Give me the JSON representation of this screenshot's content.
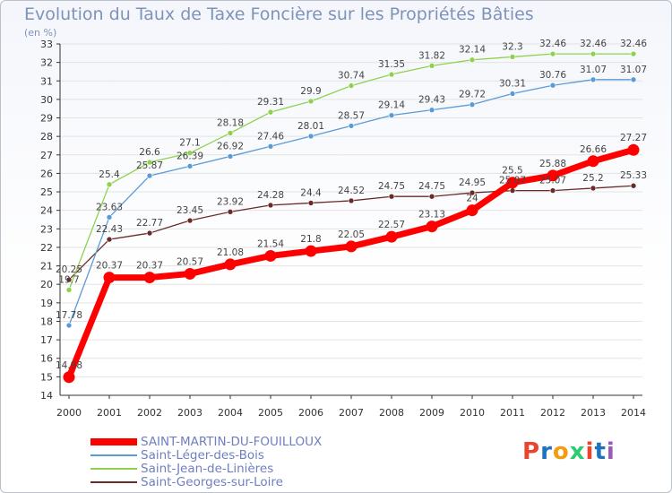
{
  "chart_data": {
    "type": "line",
    "title": "Evolution du Taux de Taxe Foncière sur les Propriétés Bâties",
    "ylabel": "(en %)",
    "xlabel": "",
    "ylim": [
      14,
      33
    ],
    "categories": [
      "2000",
      "2001",
      "2002",
      "2003",
      "2004",
      "2005",
      "2006",
      "2007",
      "2008",
      "2009",
      "2010",
      "2011",
      "2012",
      "2013",
      "2014"
    ],
    "series": [
      {
        "name": "SAINT-MARTIN-DU-FOUILLOUX",
        "color": "#ff0000",
        "values": [
          14.98,
          20.37,
          20.37,
          20.57,
          21.08,
          21.54,
          21.8,
          22.05,
          22.57,
          23.13,
          24,
          25.5,
          25.88,
          26.66,
          27.27
        ],
        "labels": [
          "14.98",
          "20.37",
          "20.37",
          "20.57",
          "21.08",
          "21.54",
          "21.8",
          "22.05",
          "22.57",
          "23.13",
          "24",
          "25.5",
          "25.88",
          "26.66",
          "27.27"
        ]
      },
      {
        "name": "Saint-Léger-des-Bois",
        "color": "#5b9bd5",
        "values": [
          17.78,
          23.63,
          25.87,
          26.39,
          26.92,
          27.46,
          28.01,
          28.57,
          29.14,
          29.43,
          29.72,
          30.31,
          30.76,
          31.07,
          31.07
        ],
        "labels": [
          "17.78",
          "23.63",
          "25.87",
          "26.39",
          "26.92",
          "27.46",
          "28.01",
          "28.57",
          "29.14",
          "29.43",
          "29.72",
          "30.31",
          "30.76",
          "31.07",
          "31.07"
        ]
      },
      {
        "name": "Saint-Jean-de-Linières",
        "color": "#8fd14f",
        "values": [
          19.7,
          25.4,
          26.6,
          27.1,
          28.18,
          29.31,
          29.9,
          30.74,
          31.35,
          31.82,
          32.14,
          32.3,
          32.46,
          32.46,
          32.46
        ],
        "labels": [
          "19.7",
          "25.4",
          "26.6",
          "27.1",
          "28.18",
          "29.31",
          "29.9",
          "30.74",
          "31.35",
          "31.82",
          "32.14",
          "32.3",
          "32.46",
          "32.46",
          "32.46"
        ]
      },
      {
        "name": "Saint-Georges-sur-Loire",
        "color": "#6b2a2a",
        "values": [
          20.25,
          22.43,
          22.77,
          23.45,
          23.92,
          24.28,
          24.4,
          24.52,
          24.75,
          24.75,
          24.95,
          25.07,
          25.07,
          25.2,
          25.33
        ],
        "labels": [
          "20.25",
          "22.43",
          "22.77",
          "23.45",
          "23.92",
          "24.28",
          "24.4",
          "24.52",
          "24.75",
          "24.75",
          "24.95",
          "25.07",
          "25.07",
          "25.2",
          "25.33"
        ]
      }
    ]
  },
  "brand": {
    "logo_text": "Proxiti",
    "letter_colors": [
      "#e8452c",
      "#1e73be",
      "#f39c12",
      "#2ecc71",
      "#e8452c",
      "#1e73be",
      "#9b59b6"
    ]
  }
}
